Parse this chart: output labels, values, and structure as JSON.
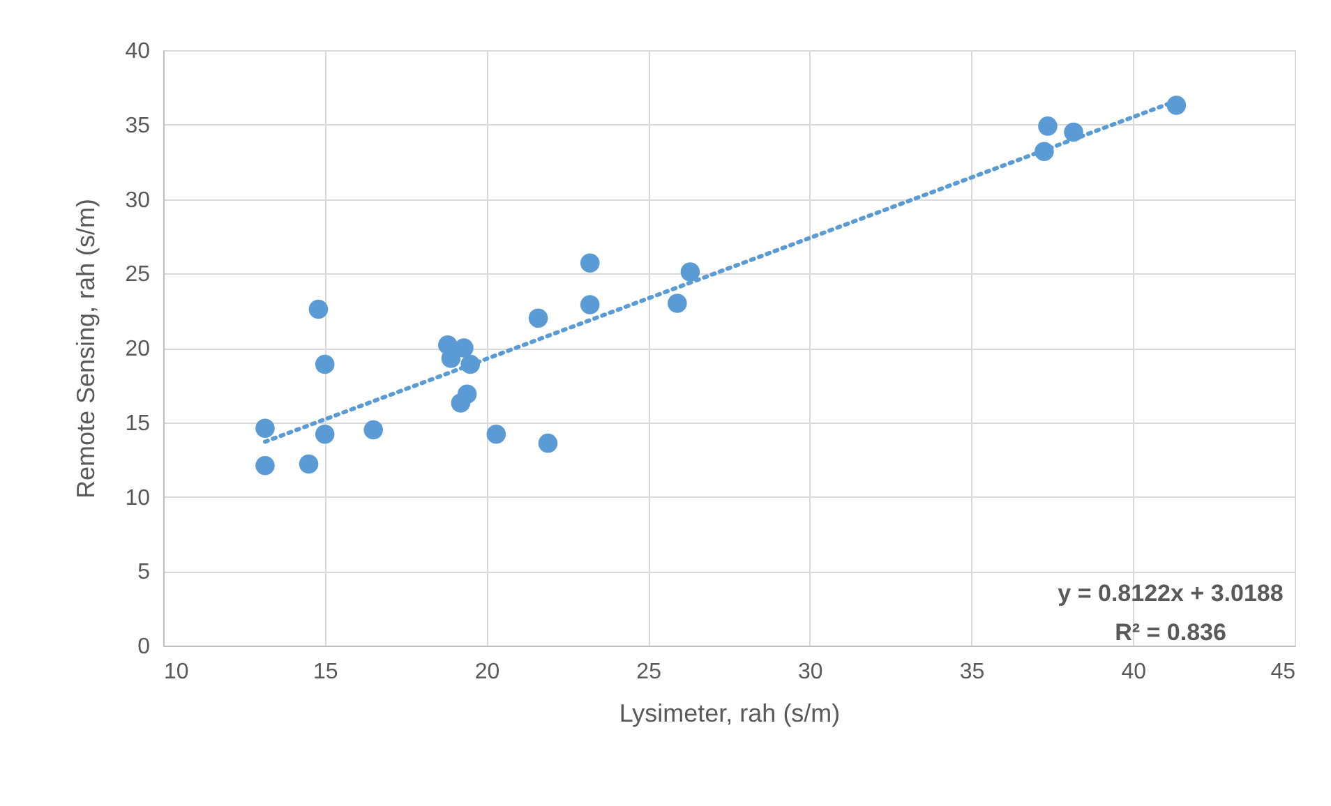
{
  "chart_data": {
    "type": "scatter",
    "xlabel": "Lysimeter, rah (s/m)",
    "ylabel": "Remote Sensing, rah (s/m)",
    "xlim": [
      10,
      45
    ],
    "xticks": [
      10,
      15,
      20,
      25,
      30,
      35,
      40,
      45
    ],
    "ylim": [
      0,
      40
    ],
    "yticks": [
      0,
      5,
      10,
      15,
      20,
      25,
      30,
      35,
      40
    ],
    "grid": true,
    "marker": "circle",
    "series": [
      {
        "type": "scatter",
        "color": "#5b9bd5",
        "x": [
          13.15,
          13.15,
          14.5,
          14.8,
          15.0,
          15.0,
          16.5,
          18.8,
          18.9,
          19.3,
          19.5,
          19.2,
          19.4,
          20.3,
          21.6,
          21.9,
          23.2,
          23.2,
          25.9,
          26.3,
          37.25,
          37.36,
          38.16,
          41.34
        ],
        "values": [
          12.1,
          14.6,
          12.2,
          22.6,
          18.9,
          14.2,
          14.5,
          20.2,
          19.3,
          20.0,
          18.9,
          16.3,
          16.9,
          14.2,
          22.0,
          13.6,
          22.9,
          25.7,
          23.0,
          25.1,
          33.2,
          34.9,
          34.5,
          36.3
        ]
      },
      {
        "type": "line",
        "color": "#5b9bd5",
        "line_style": "dotted",
        "marker": "none",
        "x": [
          13.15,
          41.34
        ],
        "values": [
          13.7,
          36.6
        ]
      }
    ],
    "annotations": [
      "y = 0.8122x + 3.0188",
      "R² = 0.836"
    ]
  }
}
